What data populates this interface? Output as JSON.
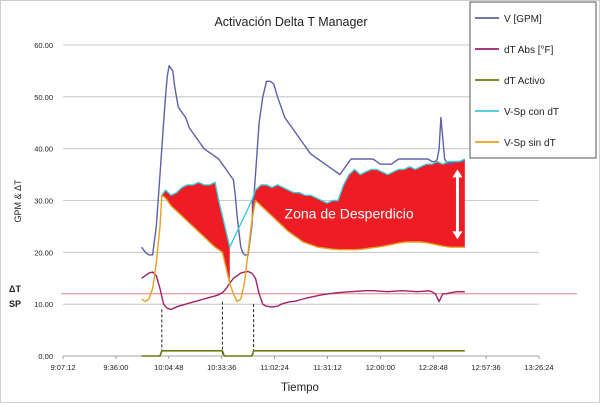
{
  "chart_data": {
    "type": "line",
    "title": "Activación Delta T Manager",
    "xlabel": "Tiempo",
    "ylabel": "GPM & ΔT",
    "ylim": [
      0,
      60
    ],
    "y_ticks": [
      "0.00",
      "10.00",
      "20.00",
      "30.00",
      "40.00",
      "50.00",
      "60.00"
    ],
    "x_ticks": [
      "9:07:12",
      "9:36:00",
      "10:04:48",
      "10:33:36",
      "11:02:24",
      "11:31:12",
      "12:00:00",
      "12:28:48",
      "12:57:36",
      "13:26:24"
    ],
    "x_range_minutes": [
      547.2,
      806.4
    ],
    "grid": true,
    "legend_position": "top-right",
    "sp_label": "ΔT\nSP",
    "sp_value": 12,
    "annotation": "Zona de Desperdicio",
    "colors": {
      "flow": "#6060a8",
      "dt_abs": "#a0206a",
      "dt_activo": "#707a10",
      "vsp_con": "#40c8d8",
      "vsp_sin": "#e8a020",
      "waste_fill": "#ee1c24",
      "sp_line": "#e88080",
      "arrow": "#ffffff"
    },
    "series": [
      {
        "name": "V [GPM]",
        "x": [
          590,
          592,
          594,
          596,
          598,
          600,
          602,
          603,
          604,
          605,
          606,
          607,
          608,
          610,
          612,
          614,
          616,
          618,
          620,
          622,
          624,
          626,
          628,
          630,
          632,
          634,
          636,
          638,
          640,
          641,
          642,
          643,
          644,
          645,
          646,
          647,
          648,
          650,
          652,
          654,
          656,
          658,
          660,
          662,
          664,
          666,
          668,
          670,
          672,
          674,
          676,
          678,
          680,
          682,
          684,
          686,
          688,
          690,
          692,
          694,
          696,
          698,
          700,
          702,
          704,
          706,
          708,
          710,
          712,
          714,
          716,
          718,
          720,
          722,
          724,
          726,
          728,
          730,
          732,
          734,
          736,
          738,
          740,
          742,
          744,
          746,
          748,
          750,
          751,
          752,
          753,
          754,
          755,
          756,
          757,
          758,
          759,
          760,
          762,
          764,
          766
        ],
        "y": [
          21,
          20,
          19.5,
          19.5,
          25,
          35,
          45,
          50,
          54,
          56,
          55.5,
          55,
          52,
          48,
          47,
          46,
          44,
          43,
          42,
          41,
          40,
          39.5,
          39,
          38.5,
          38,
          37,
          36,
          35,
          34,
          31,
          27,
          24,
          21,
          20,
          19.5,
          19.5,
          19.5,
          25,
          35,
          45,
          50,
          53,
          53,
          52.5,
          50,
          48,
          46,
          45,
          44,
          43,
          42,
          41,
          40,
          39,
          38.5,
          38,
          37.5,
          37,
          36.5,
          36,
          35.5,
          35,
          36,
          37,
          38,
          38,
          38,
          38,
          38,
          38,
          38,
          37.5,
          37,
          37,
          37,
          37,
          37.5,
          38,
          38,
          38,
          38,
          38,
          38,
          38,
          38,
          38,
          37.5,
          37.5,
          38,
          40,
          46,
          42,
          38,
          37.5,
          37,
          37.5,
          37,
          37.5,
          37.5,
          37.5,
          37.5
        ]
      },
      {
        "name": "dT Abs [°F]",
        "x": [
          590,
          592,
          594,
          596,
          598,
          600,
          602,
          604,
          606,
          608,
          610,
          612,
          614,
          616,
          618,
          620,
          622,
          624,
          626,
          628,
          630,
          632,
          634,
          636,
          638,
          640,
          642,
          644,
          646,
          648,
          650,
          652,
          654,
          656,
          658,
          660,
          662,
          664,
          666,
          668,
          670,
          672,
          674,
          676,
          678,
          680,
          684,
          688,
          692,
          696,
          700,
          704,
          708,
          712,
          716,
          720,
          724,
          728,
          732,
          736,
          740,
          744,
          746,
          748,
          750,
          752,
          754,
          756,
          758,
          760,
          762,
          764,
          766
        ],
        "y": [
          15,
          15.5,
          16,
          16.2,
          15.5,
          13,
          10,
          9.2,
          9,
          9.3,
          9.6,
          9.8,
          10,
          10.2,
          10.4,
          10.6,
          10.8,
          11,
          11.2,
          11.4,
          11.6,
          11.8,
          12.2,
          13,
          14,
          15,
          15.5,
          16,
          16.2,
          16.3,
          16,
          15,
          12,
          10,
          9.6,
          9.5,
          9.5,
          9.6,
          10,
          10.2,
          10.4,
          10.5,
          10.6,
          10.8,
          11,
          11.2,
          11.5,
          11.8,
          12,
          12.2,
          12.3,
          12.4,
          12.5,
          12.6,
          12.6,
          12.5,
          12.4,
          12.5,
          12.6,
          12.5,
          12.4,
          12.5,
          12.6,
          12.4,
          12,
          10.5,
          12,
          12,
          12.2,
          12.3,
          12.4,
          12.4,
          12.4
        ]
      },
      {
        "name": "dT Activo",
        "x": [
          590,
          600,
          601,
          634,
          635,
          650,
          651,
          766
        ],
        "y": [
          0,
          0,
          1,
          1,
          0,
          0,
          1,
          1
        ]
      },
      {
        "name": "V-Sp con dT",
        "x": [
          601,
          603,
          606,
          609,
          612,
          615,
          618,
          621,
          624,
          627,
          630,
          632,
          634,
          636,
          638,
          650,
          652,
          655,
          658,
          661,
          664,
          667,
          670,
          673,
          676,
          679,
          682,
          685,
          688,
          691,
          694,
          697,
          700,
          703,
          706,
          709,
          712,
          715,
          718,
          721,
          724,
          727,
          730,
          733,
          736,
          739,
          742,
          745,
          748,
          751,
          754,
          757,
          760,
          763,
          766
        ],
        "y": [
          31,
          32,
          31,
          31.5,
          32.5,
          33,
          33,
          33.5,
          33,
          33,
          33.5,
          30,
          27,
          24,
          21,
          30,
          32,
          33,
          33,
          32.5,
          33,
          32.5,
          32,
          31.5,
          31.5,
          31,
          31,
          30.5,
          30,
          29.5,
          30,
          30,
          33,
          35,
          36,
          35,
          35.5,
          36,
          36,
          35.5,
          35,
          35.5,
          36,
          36,
          36.5,
          36,
          36.5,
          37,
          37,
          37.5,
          37,
          37.5,
          37.5,
          37.5,
          38
        ]
      },
      {
        "name": "V-Sp sin dT",
        "x": [
          590,
          592,
          594,
          596,
          598,
          600,
          601,
          603,
          606,
          609,
          612,
          615,
          618,
          621,
          624,
          627,
          630,
          632,
          634,
          636,
          638,
          640,
          642,
          644,
          646,
          648,
          650,
          652,
          655,
          658,
          661,
          664,
          667,
          670,
          674,
          678,
          682,
          686,
          690,
          694,
          698,
          702,
          706,
          710,
          714,
          718,
          722,
          726,
          730,
          734,
          738,
          742,
          746,
          750,
          754,
          758,
          762,
          766
        ],
        "y": [
          11,
          10.5,
          11,
          13,
          18,
          25,
          31,
          30.5,
          29,
          28,
          27,
          26,
          25,
          24,
          23,
          22,
          21,
          20.5,
          20,
          17,
          14,
          12,
          10.5,
          11,
          14,
          20,
          26,
          30,
          29,
          28,
          27,
          26,
          25,
          24,
          23,
          22,
          21.5,
          21,
          20.8,
          20.6,
          20.5,
          20.5,
          20.5,
          20.6,
          20.8,
          21,
          21.2,
          21.5,
          21.8,
          22,
          22,
          22,
          21.8,
          21.5,
          21.2,
          21,
          21,
          21
        ]
      }
    ]
  }
}
